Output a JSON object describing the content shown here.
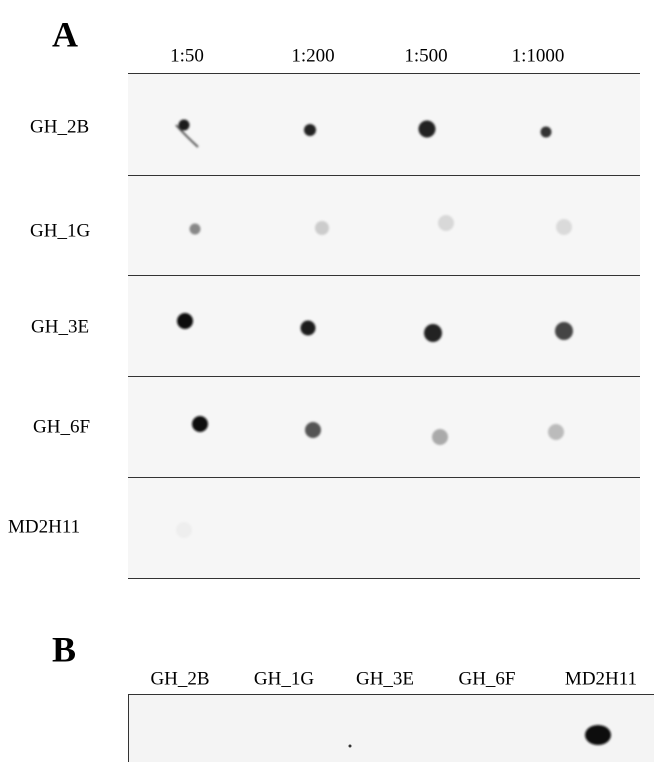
{
  "panel_a": {
    "label": "A",
    "columns": [
      "1:50",
      "1:200",
      "1:500",
      "1:1000"
    ],
    "rows": [
      "GH_2B",
      "GH_1G",
      "GH_3E",
      "GH_6F",
      "MD2H11"
    ]
  },
  "panel_b": {
    "label": "B",
    "columns": [
      "GH_2B",
      "GH_1G",
      "GH_3E",
      "GH_6F",
      "MD2H11"
    ]
  }
}
